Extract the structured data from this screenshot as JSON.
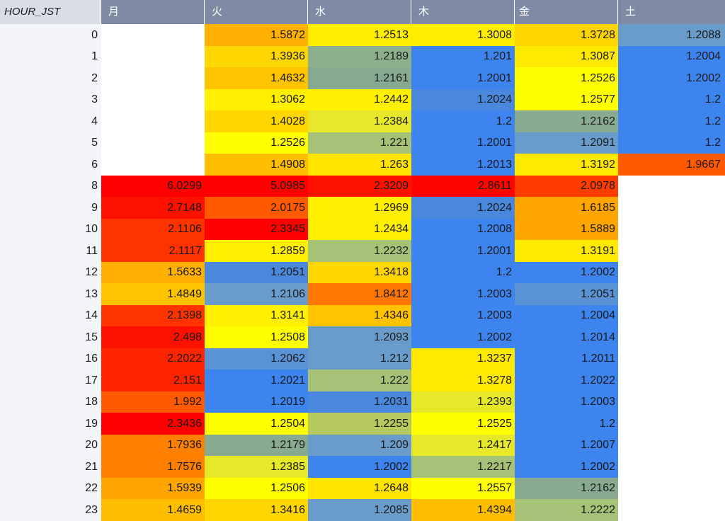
{
  "table": {
    "index_header": "HOUR_JST",
    "columns": [
      "月",
      "火",
      "水",
      "木",
      "金",
      "土"
    ],
    "rows": [
      {
        "hour": "0",
        "values": [
          "",
          "1.5872",
          "1.2513",
          "1.3008",
          "1.3728",
          "1.2088"
        ],
        "colors": [
          "#ffffff",
          "#ffb000",
          "#ffed00",
          "#ffed00",
          "#ffd500",
          "#6a9ccb"
        ]
      },
      {
        "hour": "1",
        "values": [
          "",
          "1.3936",
          "1.2189",
          "1.201",
          "1.3087",
          "1.2004"
        ],
        "colors": [
          "#ffffff",
          "#ffd700",
          "#8cb08c",
          "#3d84ee",
          "#ffe900",
          "#3d84ee"
        ]
      },
      {
        "hour": "2",
        "values": [
          "",
          "1.4632",
          "1.2161",
          "1.2001",
          "1.2526",
          "1.2002"
        ],
        "colors": [
          "#ffffff",
          "#ffc300",
          "#86aa90",
          "#3d84ee",
          "#ffff00",
          "#3d84ee"
        ]
      },
      {
        "hour": "3",
        "values": [
          "",
          "1.3062",
          "1.2442",
          "1.2024",
          "1.2577",
          "1.2"
        ],
        "colors": [
          "#ffffff",
          "#ffef00",
          "#ffef00",
          "#4a88de",
          "#ffff00",
          "#3d84ee"
        ]
      },
      {
        "hour": "4",
        "values": [
          "",
          "1.4028",
          "1.2384",
          "1.2",
          "1.2162",
          "1.2"
        ],
        "colors": [
          "#ffffff",
          "#ffd700",
          "#e8e82a",
          "#3d84ee",
          "#88ab8f",
          "#3d84ee"
        ]
      },
      {
        "hour": "5",
        "values": [
          "",
          "1.2526",
          "1.221",
          "1.2001",
          "1.2091",
          "1.2"
        ],
        "colors": [
          "#ffffff",
          "#ffff00",
          "#a5c277",
          "#3d84ee",
          "#6a9ccb",
          "#3d84ee"
        ]
      },
      {
        "hour": "6",
        "values": [
          "",
          "1.4908",
          "1.263",
          "1.2013",
          "1.3192",
          "1.9667"
        ],
        "colors": [
          "#ffffff",
          "#ffbf00",
          "#ffe500",
          "#3d84ee",
          "#ffe900",
          "#ff5a00"
        ]
      },
      {
        "hour": "8",
        "values": [
          "6.0299",
          "5.0985",
          "2.3209",
          "2.8611",
          "2.0978",
          ""
        ],
        "colors": [
          "#ff0000",
          "#ff0000",
          "#ff1100",
          "#ff0500",
          "#ff3c00",
          "#ffffff"
        ]
      },
      {
        "hour": "9",
        "values": [
          "2.7148",
          "2.0175",
          "1.2969",
          "1.2024",
          "1.6185",
          ""
        ],
        "colors": [
          "#ff1100",
          "#ff5a00",
          "#ffef00",
          "#4a88de",
          "#ffa500",
          "#ffffff"
        ]
      },
      {
        "hour": "10",
        "values": [
          "2.1106",
          "2.3345",
          "1.2434",
          "1.2008",
          "1.5889",
          ""
        ],
        "colors": [
          "#ff3300",
          "#ff0000",
          "#ffef00",
          "#3d84ee",
          "#ffa500",
          "#ffffff"
        ]
      },
      {
        "hour": "11",
        "values": [
          "2.1117",
          "1.2859",
          "1.2232",
          "1.2001",
          "1.3191",
          ""
        ],
        "colors": [
          "#ff3300",
          "#ffef00",
          "#a5c277",
          "#3d84ee",
          "#ffe900",
          "#ffffff"
        ]
      },
      {
        "hour": "12",
        "values": [
          "1.5633",
          "1.2051",
          "1.3418",
          "1.2",
          "1.2002",
          ""
        ],
        "colors": [
          "#ffb000",
          "#4a88de",
          "#ffd700",
          "#3d84ee",
          "#3d84ee",
          "#ffffff"
        ]
      },
      {
        "hour": "13",
        "values": [
          "1.4849",
          "1.2106",
          "1.8412",
          "1.2003",
          "1.2051",
          ""
        ],
        "colors": [
          "#ffc300",
          "#6a9ccb",
          "#ff7700",
          "#3d84ee",
          "#5a92d6",
          "#ffffff"
        ]
      },
      {
        "hour": "14",
        "values": [
          "2.1398",
          "1.3141",
          "1.4346",
          "1.2003",
          "1.2004",
          ""
        ],
        "colors": [
          "#ff3300",
          "#ffef00",
          "#ffc300",
          "#3d84ee",
          "#3d84ee",
          "#ffffff"
        ]
      },
      {
        "hour": "15",
        "values": [
          "2.498",
          "1.2508",
          "1.2093",
          "1.2002",
          "1.2014",
          ""
        ],
        "colors": [
          "#ff1100",
          "#ffff00",
          "#6a9ccb",
          "#3d84ee",
          "#3d84ee",
          "#ffffff"
        ]
      },
      {
        "hour": "16",
        "values": [
          "2.2022",
          "1.2062",
          "1.212",
          "1.3237",
          "1.2011",
          ""
        ],
        "colors": [
          "#ff2400",
          "#5a92d6",
          "#6a9ccb",
          "#ffe900",
          "#3d84ee",
          "#ffffff"
        ]
      },
      {
        "hour": "17",
        "values": [
          "2.151",
          "1.2021",
          "1.222",
          "1.3278",
          "1.2022",
          ""
        ],
        "colors": [
          "#ff2400",
          "#3d84ee",
          "#a5c277",
          "#ffe900",
          "#3d84ee",
          "#ffffff"
        ]
      },
      {
        "hour": "18",
        "values": [
          "1.992",
          "1.2019",
          "1.2031",
          "1.2393",
          "1.2003",
          ""
        ],
        "colors": [
          "#ff5a00",
          "#3d84ee",
          "#4a88de",
          "#e8e82a",
          "#3d84ee",
          "#ffffff"
        ]
      },
      {
        "hour": "19",
        "values": [
          "2.3436",
          "1.2504",
          "1.2255",
          "1.2525",
          "1.2",
          ""
        ],
        "colors": [
          "#ff0000",
          "#ffff00",
          "#b6c95f",
          "#ffff00",
          "#3d84ee",
          "#ffffff"
        ]
      },
      {
        "hour": "20",
        "values": [
          "1.7936",
          "1.2179",
          "1.209",
          "1.2417",
          "1.2007",
          ""
        ],
        "colors": [
          "#ff8000",
          "#88ab8f",
          "#6a9ccb",
          "#e8e82a",
          "#3d84ee",
          "#ffffff"
        ]
      },
      {
        "hour": "21",
        "values": [
          "1.7576",
          "1.2385",
          "1.2002",
          "1.2217",
          "1.2002",
          ""
        ],
        "colors": [
          "#ff8000",
          "#e8e82a",
          "#3d84ee",
          "#a5c277",
          "#3d84ee",
          "#ffffff"
        ]
      },
      {
        "hour": "22",
        "values": [
          "1.5939",
          "1.2506",
          "1.2648",
          "1.2557",
          "1.2162",
          ""
        ],
        "colors": [
          "#ffa500",
          "#ffff00",
          "#ffe500",
          "#ffff00",
          "#88ab8f",
          "#ffffff"
        ]
      },
      {
        "hour": "23",
        "values": [
          "1.4659",
          "1.3416",
          "1.2085",
          "1.4394",
          "1.2222",
          ""
        ],
        "colors": [
          "#ffbf00",
          "#ffd700",
          "#6a9ccb",
          "#ffbf00",
          "#a5c277",
          "#ffffff"
        ]
      }
    ]
  }
}
